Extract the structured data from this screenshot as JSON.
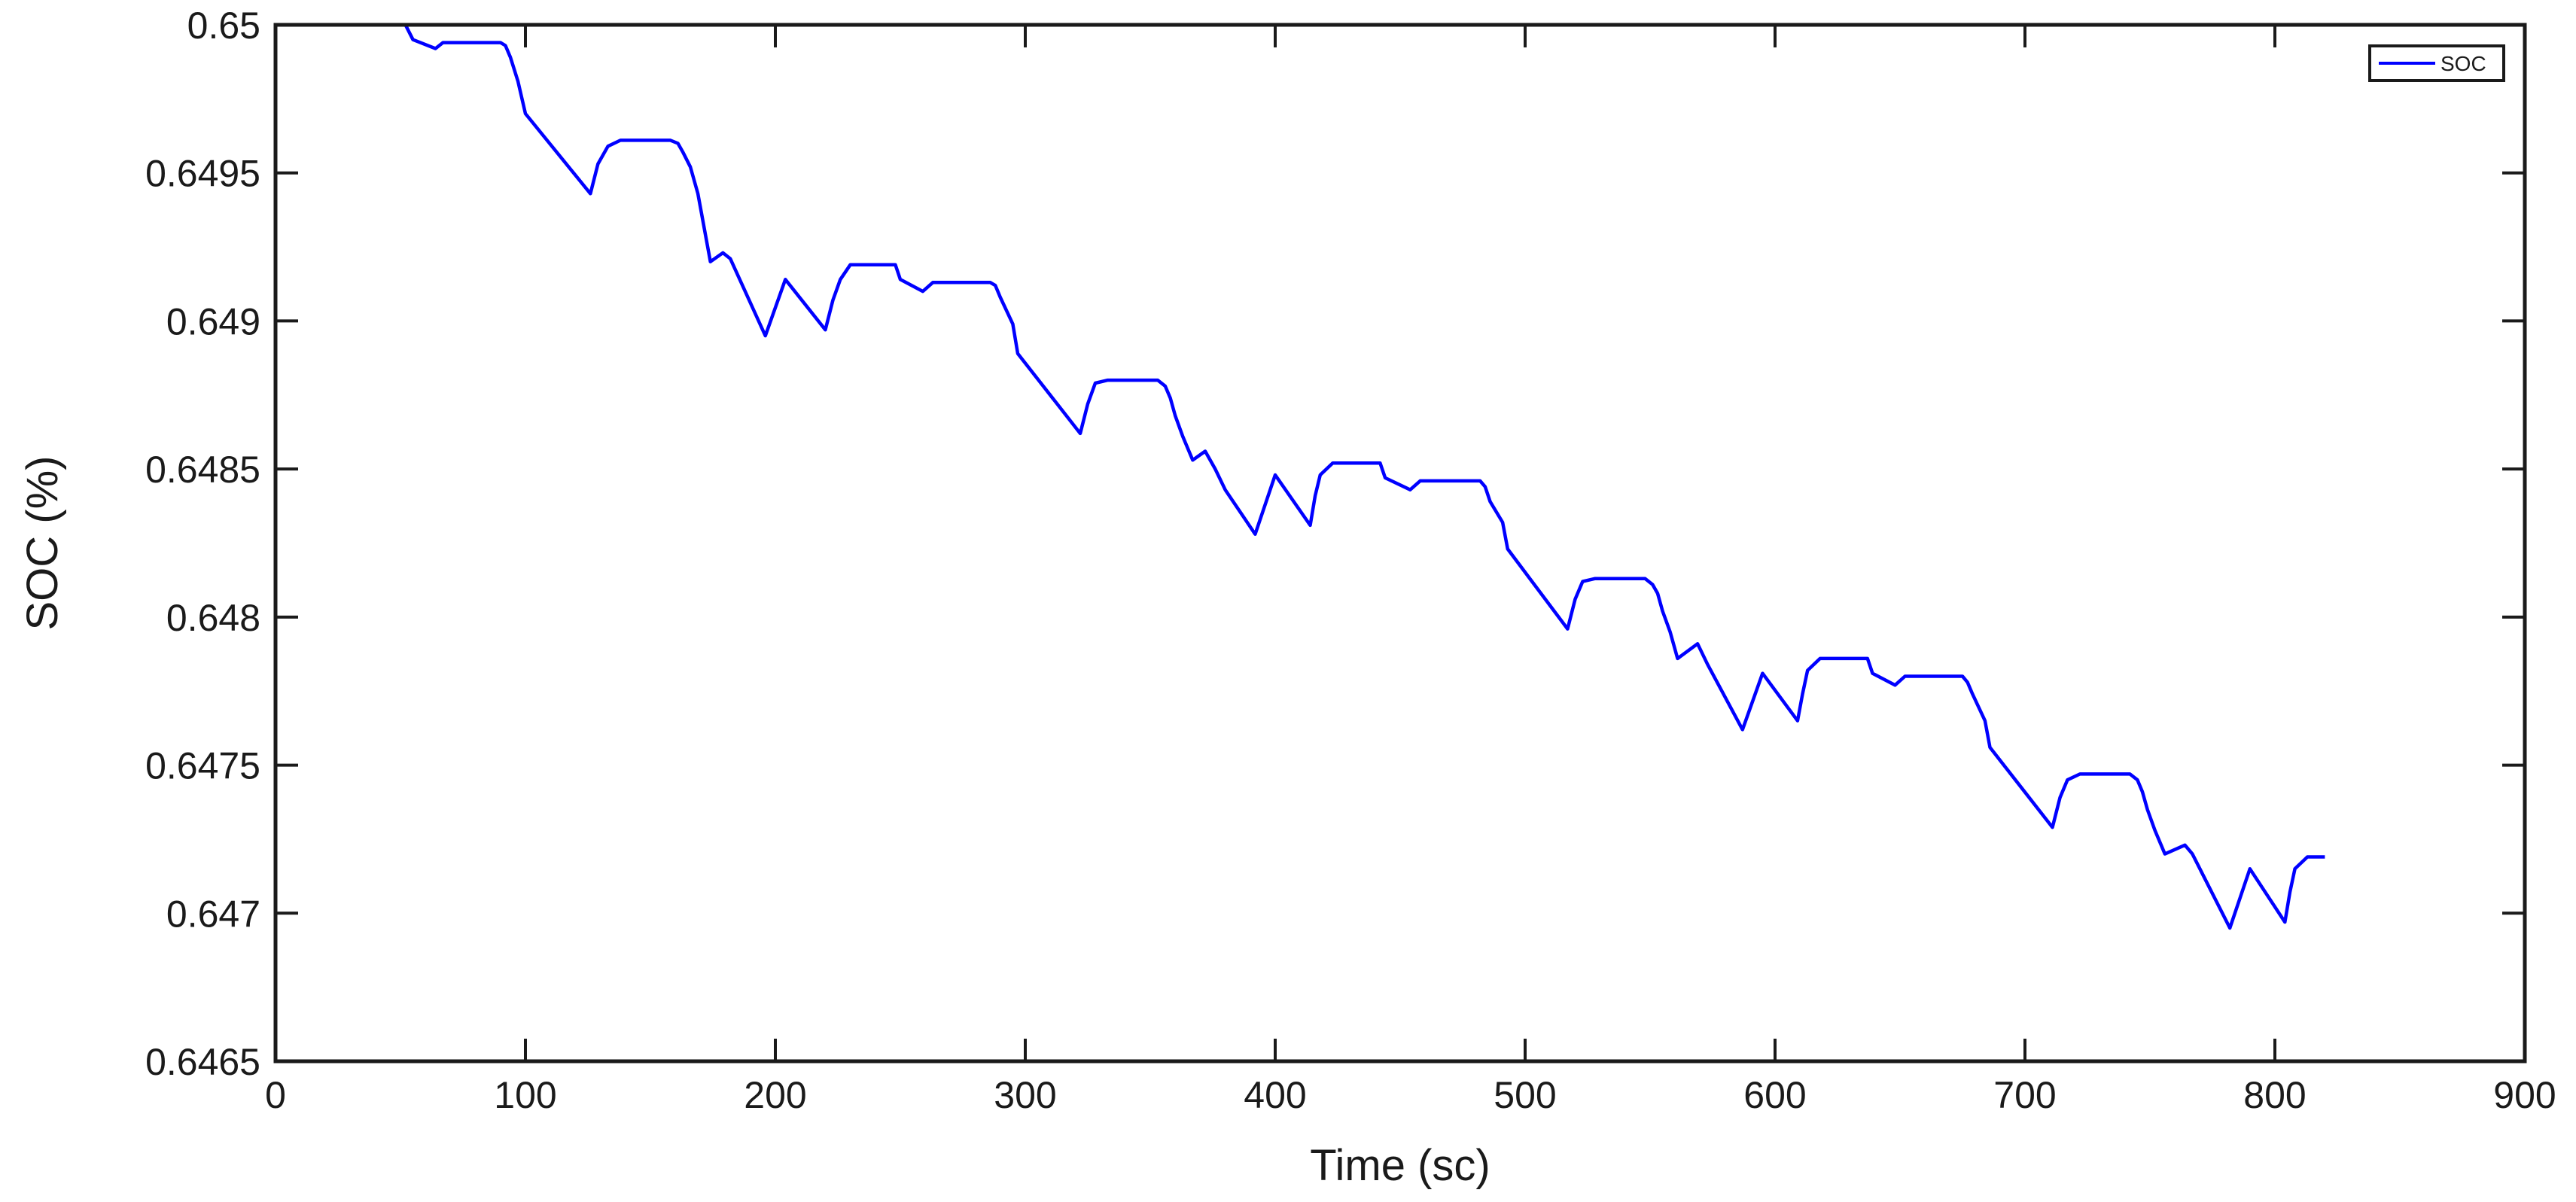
{
  "chart_data": {
    "type": "line",
    "title": "",
    "xlabel": "Time (sc)",
    "ylabel": "SOC (%)",
    "xlim": [
      0,
      900
    ],
    "ylim": [
      0.6465,
      0.65
    ],
    "xticks": [
      0,
      100,
      200,
      300,
      400,
      500,
      600,
      700,
      800,
      900
    ],
    "xtick_labels": [
      "0",
      "100",
      "200",
      "300",
      "400",
      "500",
      "600",
      "700",
      "800",
      "900"
    ],
    "yticks": [
      0.6465,
      0.647,
      0.6475,
      0.648,
      0.6485,
      0.649,
      0.6495,
      0.65
    ],
    "ytick_labels": [
      "0.6465",
      "0.647",
      "0.6475",
      "0.648",
      "0.6485",
      "0.649",
      "0.6495",
      "0.65"
    ],
    "grid": false,
    "legend_position": "top-right",
    "line_color": "#0000ff",
    "series": [
      {
        "name": "SOC",
        "x": [
          0,
          52,
          55,
          64,
          67,
          90,
          92,
          94,
          97,
          100,
          126,
          129,
          133,
          138,
          158,
          161,
          163,
          166,
          169,
          174,
          179,
          182,
          196,
          204,
          220,
          223,
          226,
          230,
          248,
          250,
          259,
          263,
          286,
          288,
          290,
          295,
          297,
          322,
          325,
          328,
          333,
          353,
          356,
          358,
          360,
          363,
          367,
          372,
          376,
          380,
          392,
          400,
          414,
          416,
          418,
          423,
          442,
          444,
          454,
          458,
          482,
          484,
          486,
          491,
          493,
          517,
          520,
          523,
          528,
          548,
          551,
          553,
          555,
          558,
          561,
          569,
          573,
          587,
          595,
          609,
          611,
          613,
          618,
          637,
          639,
          648,
          652,
          675,
          677,
          679,
          684,
          686,
          711,
          714,
          717,
          722,
          742,
          745,
          747,
          749,
          752,
          756,
          764,
          767,
          782,
          790,
          804,
          806,
          808,
          813,
          820
        ],
        "y": [
          0.65,
          0.65,
          0.64995,
          0.64992,
          0.64994,
          0.64994,
          0.64993,
          0.64989,
          0.64981,
          0.6497,
          0.64943,
          0.64953,
          0.64959,
          0.64961,
          0.64961,
          0.6496,
          0.64957,
          0.64952,
          0.64943,
          0.6492,
          0.64923,
          0.64921,
          0.64895,
          0.64914,
          0.64897,
          0.64907,
          0.64914,
          0.64919,
          0.64919,
          0.64914,
          0.6491,
          0.64913,
          0.64913,
          0.64912,
          0.64908,
          0.64899,
          0.64889,
          0.64862,
          0.64872,
          0.64879,
          0.6488,
          0.6488,
          0.64878,
          0.64874,
          0.64868,
          0.64861,
          0.64853,
          0.64856,
          0.6485,
          0.64843,
          0.64828,
          0.64848,
          0.64831,
          0.64841,
          0.64848,
          0.64852,
          0.64852,
          0.64847,
          0.64843,
          0.64846,
          0.64846,
          0.64844,
          0.64839,
          0.64832,
          0.64823,
          0.64796,
          0.64806,
          0.64812,
          0.64813,
          0.64813,
          0.64811,
          0.64808,
          0.64802,
          0.64795,
          0.64786,
          0.64791,
          0.64784,
          0.64762,
          0.64781,
          0.64765,
          0.64774,
          0.64782,
          0.64786,
          0.64786,
          0.64781,
          0.64777,
          0.6478,
          0.6478,
          0.64778,
          0.64774,
          0.64765,
          0.64756,
          0.64729,
          0.64739,
          0.64745,
          0.64747,
          0.64747,
          0.64745,
          0.64741,
          0.64735,
          0.64728,
          0.6472,
          0.64723,
          0.6472,
          0.64695,
          0.64715,
          0.64697,
          0.64707,
          0.64715,
          0.64719,
          0.64719
        ]
      }
    ]
  }
}
